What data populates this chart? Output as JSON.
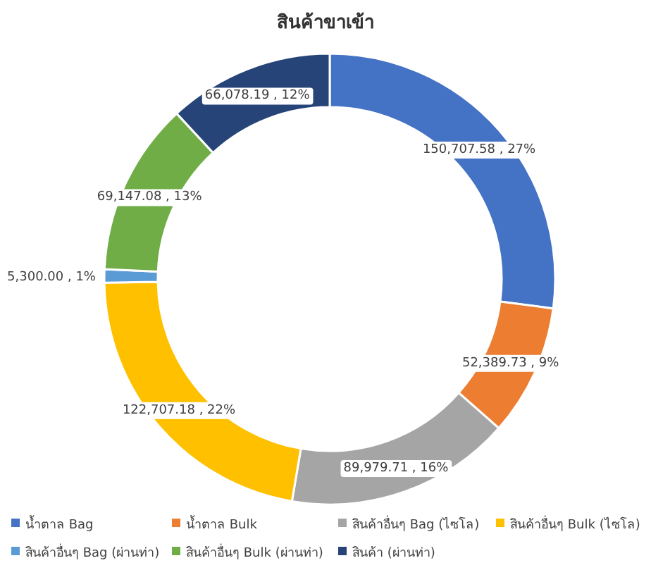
{
  "chart_data": {
    "type": "donut",
    "title": "สินค้าขาเข้า",
    "categories": [
      "น้ำตาล Bag",
      "น้ำตาล Bulk",
      "สินค้าอื่นๆ Bag (ไซโล)",
      "สินค้าอื่นๆ Bulk (ไซโล)",
      "สินค้าอื่นๆ Bag (ผ่านท่า)",
      "สินค้าอื่นๆ Bulk (ผ่านท่า)",
      "สินค้า (ผ่านท่า)"
    ],
    "values": [
      150707.58,
      52389.73,
      89979.71,
      122707.18,
      5300.0,
      69147.08,
      66078.19
    ],
    "value_labels": [
      "150,707.58 , 27%",
      "52,389.73 , 9%",
      "89,979.71 , 16%",
      "122,707.18 , 22%",
      "5,300.00 , 1%",
      "69,147.08 , 13%",
      "66,078.19 , 12%"
    ],
    "colors": [
      "#4472c4",
      "#ed7d31",
      "#a5a5a5",
      "#ffc000",
      "#5b9bd5",
      "#70ad47",
      "#264478"
    ],
    "legend": "bottom"
  }
}
